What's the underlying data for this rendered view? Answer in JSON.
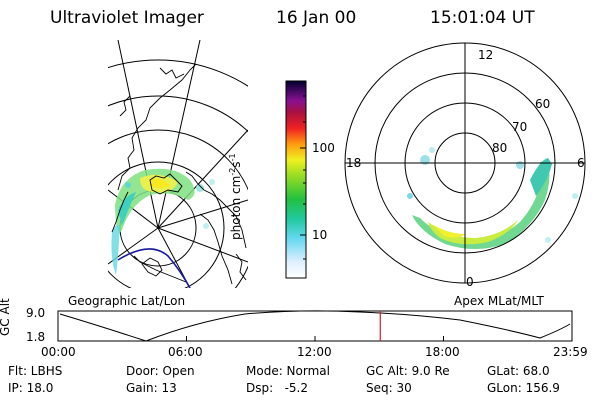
{
  "header": {
    "instrument": "Ultraviolet Imager",
    "date": "16 Jan 00",
    "time": "15:01:04 UT"
  },
  "colorbar": {
    "label": "photon cm",
    "label_sup1": "-2",
    "label_s": "s",
    "label_sup2": "-1",
    "ticks": [
      "100",
      "10"
    ]
  },
  "geo_map": {
    "caption": "Geographic Lat/Lon"
  },
  "polar_map": {
    "caption": "Apex MLat/MLT",
    "mlt_labels": [
      "12",
      "18",
      "6",
      "0"
    ],
    "lat_labels": [
      "60",
      "70",
      "80"
    ]
  },
  "altitude_plot": {
    "ylabel": "GC Alt",
    "ytick_top": "9.0",
    "ytick_bottom": "1.8",
    "xticks": [
      "00:00",
      "06:00",
      "12:00",
      "18:00",
      "23:59"
    ],
    "current_time_fraction": 0.627
  },
  "status": {
    "filter": "Flt: LBHS",
    "ip": "IP: 18.0",
    "door": "Door: Open",
    "gain": "Gain: 13",
    "mode": "Mode: Normal",
    "dsp": "Dsp:   -5.2",
    "gc_alt": "GC Alt: 9.0 Re",
    "seq": "Seq: 30",
    "glat": "GLat: 68.0",
    "glon": "GLon: 156.9"
  },
  "colors": {
    "marker": "#cc2222",
    "coastline": "#000000",
    "track": "#1a1aa0"
  }
}
